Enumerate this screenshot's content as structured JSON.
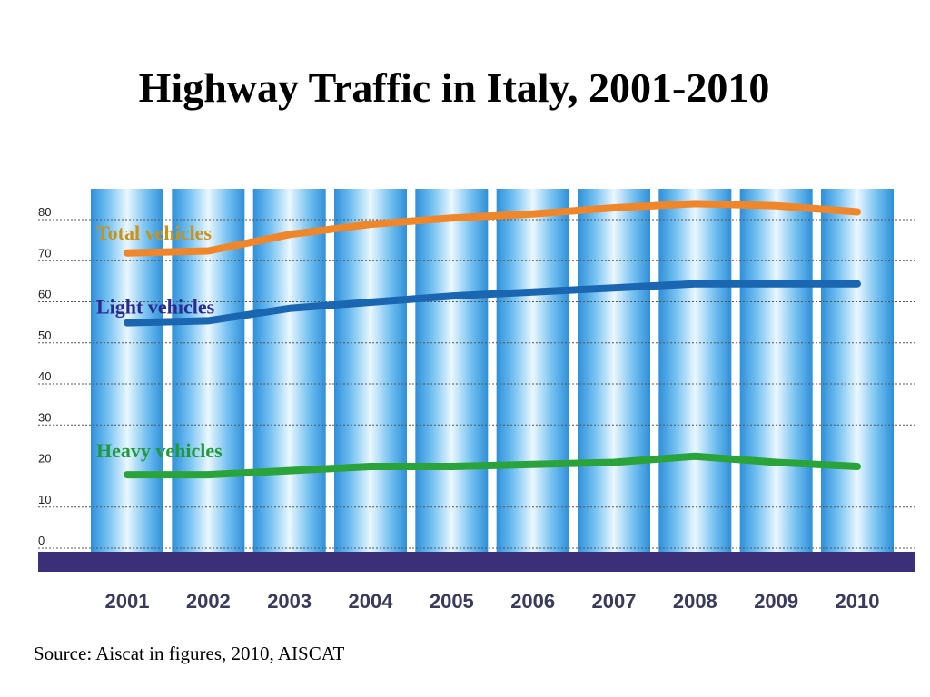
{
  "slide": {
    "title": "Highway Traffic in Italy, 2001-2010",
    "source": "Source: Aiscat in figures, 2010, AISCAT"
  },
  "chart_data": {
    "type": "line",
    "title": "Highway Traffic in Italy, 2001-2010",
    "xlabel": "",
    "ylabel": "",
    "categories": [
      "2001",
      "2002",
      "2003",
      "2004",
      "2005",
      "2006",
      "2007",
      "2008",
      "2009",
      "2010"
    ],
    "yticks": [
      0,
      10,
      20,
      30,
      40,
      50,
      60,
      70,
      80
    ],
    "ylim": [
      0,
      80
    ],
    "grid": "horizontal-dotted",
    "legend": "inline-labels",
    "series": [
      {
        "name": "Total vehicles",
        "color": "#f0862a",
        "label_color": "#c8921a",
        "values": [
          71,
          71.5,
          75.5,
          78,
          79.5,
          80.5,
          82,
          83,
          82.5,
          81
        ]
      },
      {
        "name": "Light vehicles",
        "color": "#1a66b0",
        "label_color": "#2b2a8f",
        "values": [
          54,
          54.5,
          57.5,
          59,
          60.5,
          61.5,
          62.5,
          63.5,
          63.5,
          63.5
        ]
      },
      {
        "name": "Heavy vehicles",
        "color": "#2aa43a",
        "label_color": "#1f9a3a",
        "values": [
          17,
          17,
          18,
          19,
          19,
          19.5,
          20,
          21.5,
          20,
          19
        ]
      }
    ]
  }
}
